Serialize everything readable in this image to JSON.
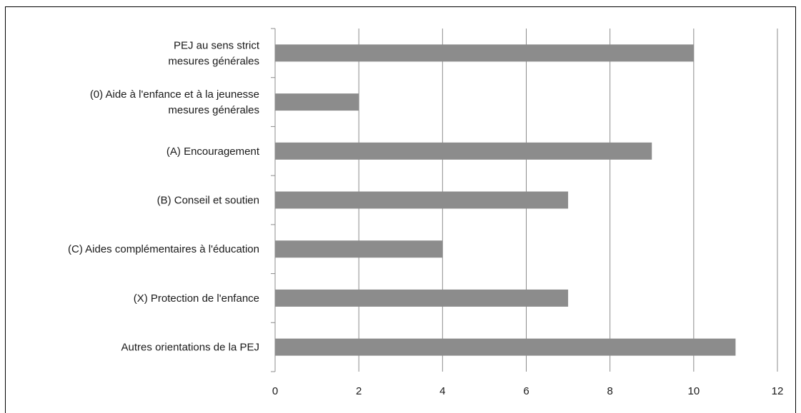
{
  "chart_data": {
    "type": "bar",
    "orientation": "horizontal",
    "title": "",
    "xlabel": "",
    "ylabel": "",
    "categories": [
      [
        "PEJ au sens strict",
        "mesures générales"
      ],
      [
        "(0) Aide à l'enfance et à la jeunesse",
        "mesures générales"
      ],
      [
        "(A) Encouragement"
      ],
      [
        "(B) Conseil et soutien"
      ],
      [
        "(C) Aides complémentaires à l'éducation"
      ],
      [
        "(X) Protection de l'enfance"
      ],
      [
        "Autres orientations de la PEJ"
      ]
    ],
    "values": [
      10,
      2,
      9,
      7,
      4,
      7,
      11
    ],
    "xlim": [
      0,
      12
    ],
    "xticks": [
      "0",
      "2",
      "4",
      "6",
      "8",
      "10",
      "12"
    ],
    "grid": true,
    "legend": "none",
    "bar_color": "#8c8c8c",
    "grid_color": "#8c8c8c"
  }
}
